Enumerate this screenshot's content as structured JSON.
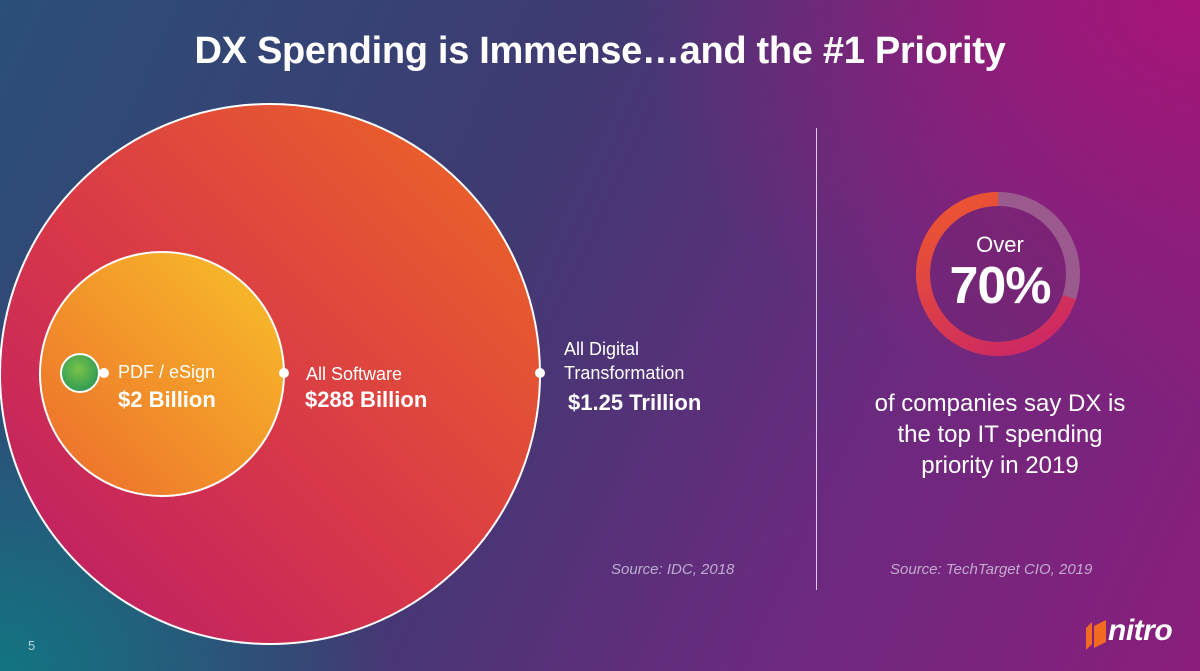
{
  "title": "DX Spending is Immense…and the #1 Priority",
  "diagram": {
    "circles": [
      {
        "name": "PDF / eSign",
        "value": "$2 Billion"
      },
      {
        "name": "All Software",
        "value": "$288 Billion"
      },
      {
        "name": "All Digital Transformation",
        "name_lines": [
          "All Digital",
          "Transformation"
        ],
        "value": "$1.25 Trillion"
      }
    ],
    "source": "Source: IDC, 2018"
  },
  "stat": {
    "prefix": "Over",
    "value": "70%",
    "percent": 70,
    "caption_lines": [
      "of companies say DX is",
      "the top IT spending",
      "priority in 2019"
    ],
    "source": "Source: TechTarget CIO, 2019"
  },
  "page_number": "5",
  "logo": {
    "text": "nitro",
    "icon": "nitro-logo-icon"
  },
  "colors": {
    "outer_circle": "#e0453a",
    "middle_circle": "#f0a02a",
    "inner_circle": "#4caf50",
    "ring_fill": "#e8402e",
    "ring_track": "#9a5a8e"
  }
}
